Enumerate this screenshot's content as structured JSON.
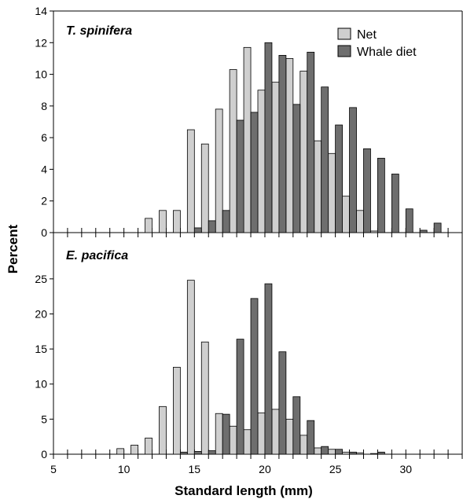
{
  "chart_data": [
    {
      "type": "bar",
      "panel_title": "T. spinifera",
      "ylim": [
        0,
        14
      ],
      "yticks": [
        0,
        2,
        4,
        6,
        8,
        10,
        12,
        14
      ],
      "xlim": [
        5,
        34
      ],
      "bar_width": 0.5,
      "series": [
        {
          "name": "Net",
          "color": "#cfcfcf",
          "x": [
            11.75,
            12.75,
            13.75,
            14.75,
            15.75,
            16.75,
            17.75,
            18.75,
            19.75,
            20.75,
            21.75,
            22.75,
            23.75,
            24.75,
            25.75,
            26.75,
            27.75
          ],
          "values": [
            0.9,
            1.4,
            1.4,
            6.5,
            5.6,
            7.8,
            10.3,
            11.7,
            9.0,
            9.5,
            11.0,
            10.2,
            5.8,
            5.0,
            2.3,
            1.4,
            0.1
          ]
        },
        {
          "name": "Whale diet",
          "color": "#6e6e6e",
          "x": [
            15.25,
            16.25,
            17.25,
            18.25,
            19.25,
            20.25,
            21.25,
            22.25,
            23.25,
            24.25,
            25.25,
            26.25,
            27.25,
            28.25,
            29.25,
            30.25,
            31.25,
            32.25
          ],
          "values": [
            0.3,
            0.75,
            1.4,
            7.1,
            7.6,
            12.0,
            11.2,
            8.1,
            11.4,
            9.2,
            6.8,
            7.9,
            5.3,
            4.7,
            3.7,
            1.5,
            0.15,
            0.6
          ]
        }
      ],
      "legend": [
        "Net",
        "Whale diet"
      ],
      "legend_position": "top-right"
    },
    {
      "type": "bar",
      "panel_title": "E. pacifica",
      "ylim": [
        0,
        27
      ],
      "yticks": [
        0,
        5,
        10,
        15,
        20,
        25
      ],
      "xlim": [
        5,
        34
      ],
      "xticks": [
        5,
        10,
        15,
        20,
        25,
        30
      ],
      "bar_width": 0.5,
      "series": [
        {
          "name": "Net",
          "color": "#cfcfcf",
          "x": [
            9.75,
            10.75,
            11.75,
            12.75,
            13.75,
            14.75,
            15.75,
            16.75,
            17.75,
            18.75,
            19.75,
            20.75,
            21.75,
            22.75,
            23.75,
            24.75,
            25.75,
            26.75,
            27.75
          ],
          "values": [
            0.8,
            1.3,
            2.3,
            6.8,
            12.4,
            24.8,
            16.0,
            5.8,
            4.0,
            3.5,
            5.9,
            6.4,
            5.0,
            2.7,
            0.9,
            0.7,
            0.3,
            0.2,
            0.1
          ]
        },
        {
          "name": "Whale diet",
          "color": "#6e6e6e",
          "x": [
            14.25,
            15.25,
            16.25,
            17.25,
            18.25,
            19.25,
            20.25,
            21.25,
            22.25,
            23.25,
            24.25,
            25.25,
            26.25,
            28.25
          ],
          "values": [
            0.3,
            0.4,
            0.5,
            5.7,
            16.4,
            22.2,
            24.3,
            14.6,
            8.2,
            4.8,
            1.1,
            0.7,
            0.3,
            0.3
          ]
        }
      ]
    }
  ],
  "xlabel": "Standard length (mm)",
  "ylabel": "Percent"
}
